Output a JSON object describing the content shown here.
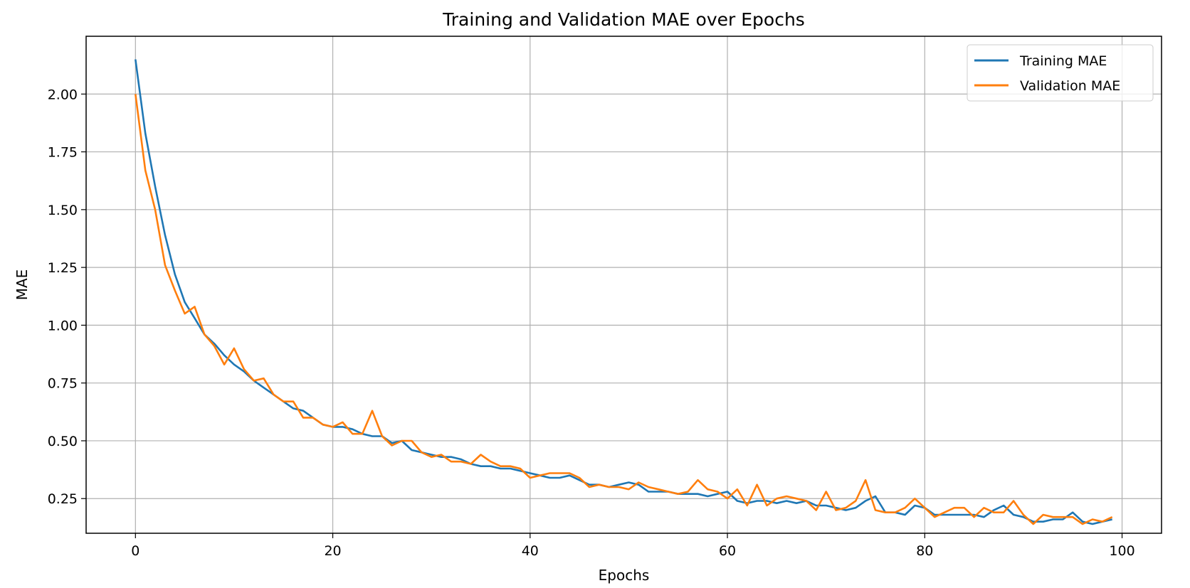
{
  "chart_data": {
    "type": "line",
    "title": "Training and Validation MAE over Epochs",
    "xlabel": "Epochs",
    "ylabel": "MAE",
    "xlim": [
      -5,
      104
    ],
    "ylim": [
      0.1,
      2.25
    ],
    "xticks": [
      0,
      20,
      40,
      60,
      80,
      100
    ],
    "yticks": [
      0.25,
      0.5,
      0.75,
      1.0,
      1.25,
      1.5,
      1.75,
      2.0
    ],
    "ytick_labels": [
      "0.25",
      "0.50",
      "0.75",
      "1.00",
      "1.25",
      "1.50",
      "1.75",
      "2.00"
    ],
    "grid": true,
    "legend": "top-right",
    "x": [
      0,
      1,
      2,
      3,
      4,
      5,
      6,
      7,
      8,
      9,
      10,
      11,
      12,
      13,
      14,
      15,
      16,
      17,
      18,
      19,
      20,
      21,
      22,
      23,
      24,
      25,
      26,
      27,
      28,
      29,
      30,
      31,
      32,
      33,
      34,
      35,
      36,
      37,
      38,
      39,
      40,
      41,
      42,
      43,
      44,
      45,
      46,
      47,
      48,
      49,
      50,
      51,
      52,
      53,
      54,
      55,
      56,
      57,
      58,
      59,
      60,
      61,
      62,
      63,
      64,
      65,
      66,
      67,
      68,
      69,
      70,
      71,
      72,
      73,
      74,
      75,
      76,
      77,
      78,
      79,
      80,
      81,
      82,
      83,
      84,
      85,
      86,
      87,
      88,
      89,
      90,
      91,
      92,
      93,
      94,
      95,
      96,
      97,
      98,
      99
    ],
    "series": [
      {
        "name": "Training MAE",
        "color": "#1f77b4",
        "values": [
          2.15,
          1.83,
          1.6,
          1.39,
          1.22,
          1.1,
          1.03,
          0.96,
          0.92,
          0.87,
          0.83,
          0.8,
          0.76,
          0.73,
          0.7,
          0.67,
          0.64,
          0.63,
          0.6,
          0.57,
          0.56,
          0.56,
          0.55,
          0.53,
          0.52,
          0.52,
          0.49,
          0.5,
          0.46,
          0.45,
          0.44,
          0.43,
          0.43,
          0.42,
          0.4,
          0.39,
          0.39,
          0.38,
          0.38,
          0.37,
          0.36,
          0.35,
          0.34,
          0.34,
          0.35,
          0.33,
          0.31,
          0.31,
          0.3,
          0.31,
          0.32,
          0.31,
          0.28,
          0.28,
          0.28,
          0.27,
          0.27,
          0.27,
          0.26,
          0.27,
          0.28,
          0.24,
          0.23,
          0.24,
          0.24,
          0.23,
          0.24,
          0.23,
          0.24,
          0.22,
          0.22,
          0.21,
          0.2,
          0.21,
          0.24,
          0.26,
          0.19,
          0.19,
          0.18,
          0.22,
          0.21,
          0.18,
          0.18,
          0.18,
          0.18,
          0.18,
          0.17,
          0.2,
          0.22,
          0.18,
          0.17,
          0.15,
          0.15,
          0.16,
          0.16,
          0.19,
          0.15,
          0.14,
          0.15,
          0.16
        ]
      },
      {
        "name": "Validation MAE",
        "color": "#ff7f0e",
        "values": [
          2.0,
          1.67,
          1.5,
          1.26,
          1.15,
          1.05,
          1.08,
          0.96,
          0.91,
          0.83,
          0.9,
          0.81,
          0.76,
          0.77,
          0.7,
          0.67,
          0.67,
          0.6,
          0.6,
          0.57,
          0.56,
          0.58,
          0.53,
          0.53,
          0.63,
          0.52,
          0.48,
          0.5,
          0.5,
          0.45,
          0.43,
          0.44,
          0.41,
          0.41,
          0.4,
          0.44,
          0.41,
          0.39,
          0.39,
          0.38,
          0.34,
          0.35,
          0.36,
          0.36,
          0.36,
          0.34,
          0.3,
          0.31,
          0.3,
          0.3,
          0.29,
          0.32,
          0.3,
          0.29,
          0.28,
          0.27,
          0.28,
          0.33,
          0.29,
          0.28,
          0.25,
          0.29,
          0.22,
          0.31,
          0.22,
          0.25,
          0.26,
          0.25,
          0.24,
          0.2,
          0.28,
          0.2,
          0.21,
          0.24,
          0.33,
          0.2,
          0.19,
          0.19,
          0.21,
          0.25,
          0.21,
          0.17,
          0.19,
          0.21,
          0.21,
          0.17,
          0.21,
          0.19,
          0.19,
          0.24,
          0.18,
          0.14,
          0.18,
          0.17,
          0.17,
          0.17,
          0.14,
          0.16,
          0.15,
          0.17
        ]
      }
    ]
  }
}
